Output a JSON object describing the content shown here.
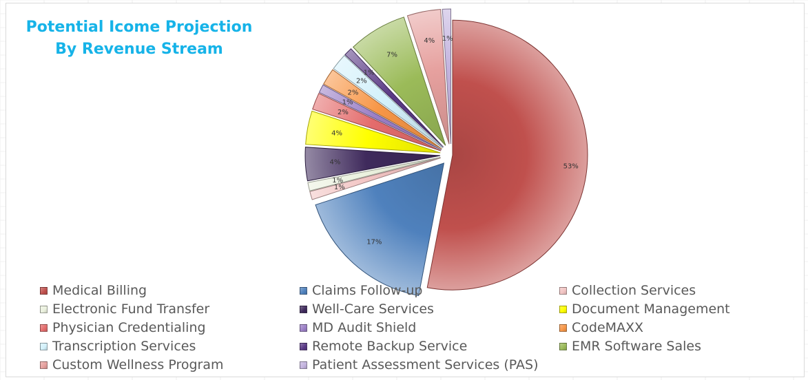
{
  "chart_data": {
    "type": "pie",
    "title": [
      "Potential Icome Projection",
      "By Revenue Stream"
    ],
    "exploded": true,
    "legend_position": "bottom",
    "slices": [
      {
        "name": "Medical Billing",
        "value": 53,
        "label": "53%",
        "color": "#c0504d"
      },
      {
        "name": "Claims Follow-up",
        "value": 17,
        "label": "17%",
        "color": "#4f81bd"
      },
      {
        "name": "Collection Services",
        "value": 1,
        "label": "1%",
        "color": "#f2c4c3"
      },
      {
        "name": "Electronic Fund Transfer",
        "value": 1,
        "label": "1%",
        "color": "#ebf1de"
      },
      {
        "name": "Well-Care Services",
        "value": 4,
        "label": "4%",
        "color": "#3f2a5c"
      },
      {
        "name": "Document Management",
        "value": 4,
        "label": "4%",
        "color": "#ffff00"
      },
      {
        "name": "Physician Credentialing",
        "value": 2,
        "label": "2%",
        "color": "#e46c6c"
      },
      {
        "name": "MD Audit Shield",
        "value": 1,
        "label": "1%",
        "color": "#9b7fc6"
      },
      {
        "name": "CodeMAXX",
        "value": 2,
        "label": "2%",
        "color": "#f79646"
      },
      {
        "name": "Transcription Services",
        "value": 2,
        "label": "2%",
        "color": "#d3f1fb"
      },
      {
        "name": "Remote Backup Service",
        "value": 1,
        "label": "1%",
        "color": "#5a3a86"
      },
      {
        "name": "EMR Software Sales",
        "value": 7,
        "label": "7%",
        "color": "#9bbb59"
      },
      {
        "name": "Custom Wellness Program",
        "value": 4,
        "label": "4%",
        "color": "#e6a09e"
      },
      {
        "name": "Patient Assessment Services (PAS)",
        "value": 1,
        "label": "1%",
        "color": "#c3b3de"
      }
    ]
  }
}
